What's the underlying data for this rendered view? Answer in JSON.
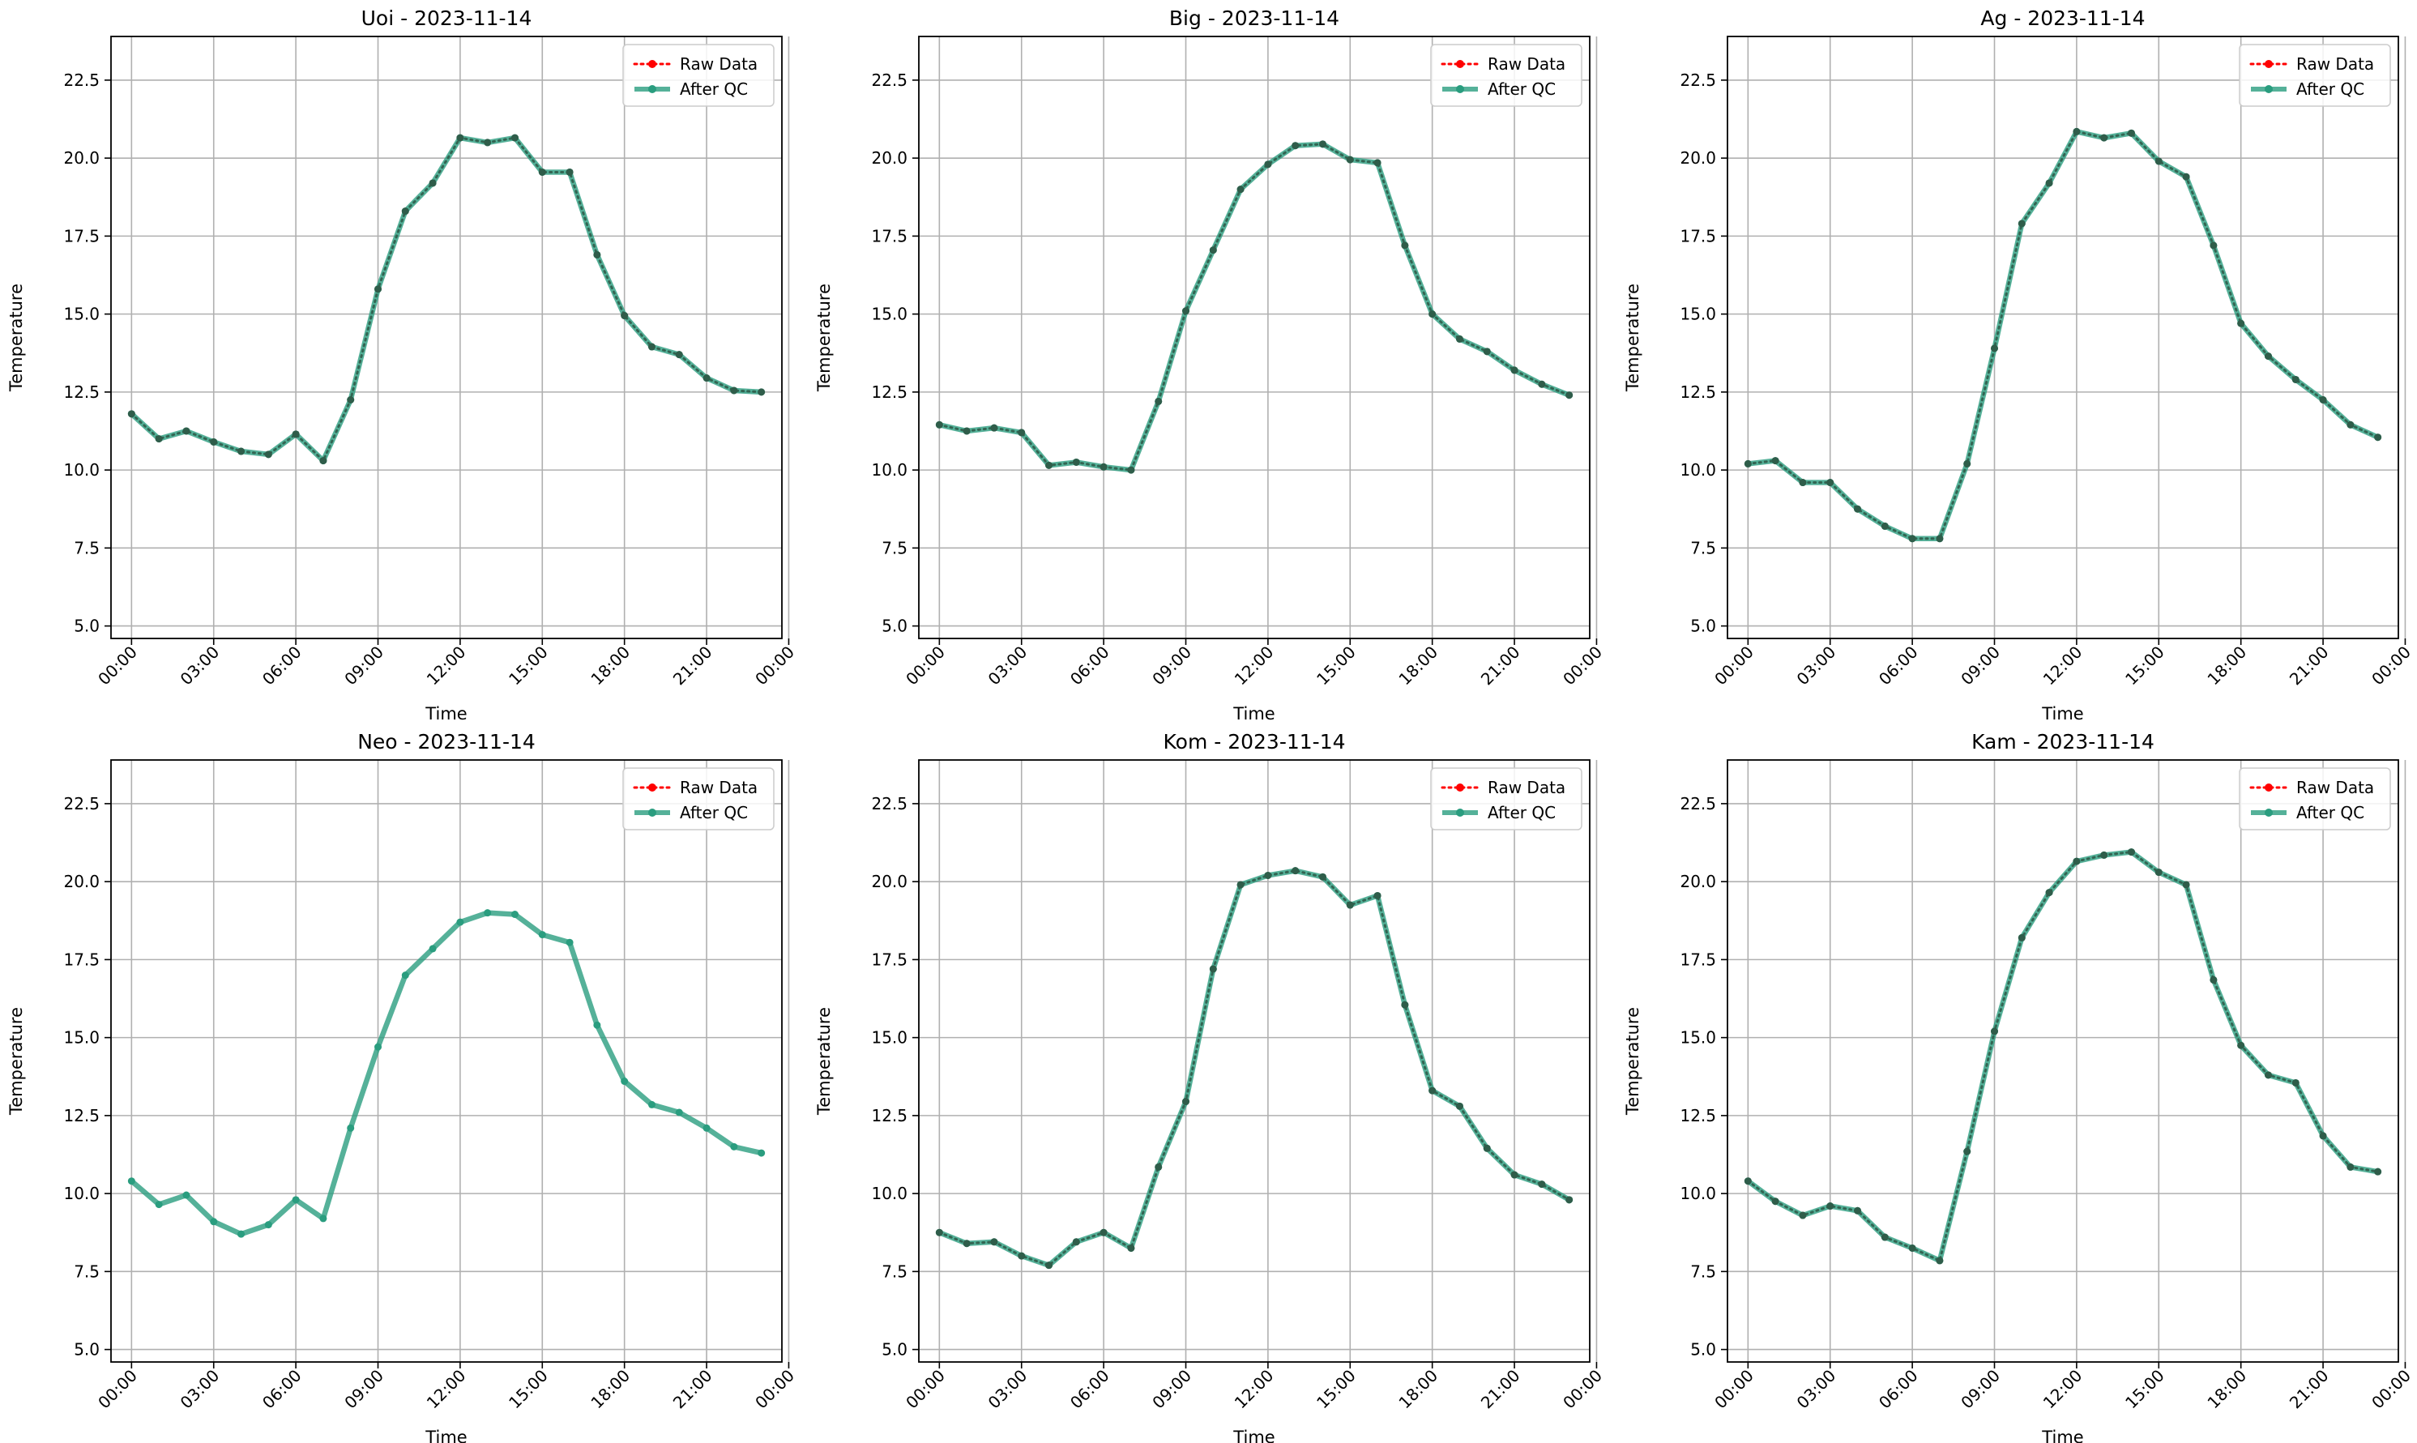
{
  "chart_data": [
    {
      "type": "line",
      "title": "Uoi - 2023-11-14",
      "xlabel": "Time",
      "ylabel": "Temperature",
      "ylim": [
        4.6,
        23.9
      ],
      "xlim": [
        -0.75,
        23.75
      ],
      "x_ticks": [
        "00:00",
        "03:00",
        "06:00",
        "09:00",
        "12:00",
        "15:00",
        "18:00",
        "21:00",
        "00:00"
      ],
      "y_ticks": [
        "5.0",
        "7.5",
        "10.0",
        "12.5",
        "15.0",
        "17.5",
        "20.0",
        "22.5"
      ],
      "grid": true,
      "legend": "top-right",
      "hours": [
        0,
        1,
        2,
        3,
        4,
        5,
        6,
        7,
        8,
        9,
        10,
        11,
        12,
        13,
        14,
        15,
        16,
        17,
        18,
        19,
        20,
        21,
        22,
        23
      ],
      "series": [
        {
          "name": "Raw Data",
          "values": [
            11.8,
            11.0,
            11.25,
            10.9,
            10.6,
            10.5,
            11.15,
            10.3,
            12.25,
            15.8,
            18.3,
            19.2,
            20.65,
            20.5,
            20.65,
            19.55,
            19.55,
            16.9,
            14.95,
            13.95,
            13.7,
            12.95,
            12.55,
            12.5
          ]
        },
        {
          "name": "After QC",
          "values": [
            11.8,
            11.0,
            11.25,
            10.9,
            10.6,
            10.5,
            11.15,
            10.3,
            12.25,
            15.8,
            18.3,
            19.2,
            20.65,
            20.5,
            20.65,
            19.55,
            19.55,
            16.9,
            14.95,
            13.95,
            13.7,
            12.95,
            12.55,
            12.5
          ]
        }
      ]
    },
    {
      "type": "line",
      "title": "Big - 2023-11-14",
      "xlabel": "Time",
      "ylabel": "Temperature",
      "ylim": [
        4.6,
        23.9
      ],
      "xlim": [
        -0.75,
        23.75
      ],
      "x_ticks": [
        "00:00",
        "03:00",
        "06:00",
        "09:00",
        "12:00",
        "15:00",
        "18:00",
        "21:00",
        "00:00"
      ],
      "y_ticks": [
        "5.0",
        "7.5",
        "10.0",
        "12.5",
        "15.0",
        "17.5",
        "20.0",
        "22.5"
      ],
      "grid": true,
      "legend": "top-right",
      "hours": [
        0,
        1,
        2,
        3,
        4,
        5,
        6,
        7,
        8,
        9,
        10,
        11,
        12,
        13,
        14,
        15,
        16,
        17,
        18,
        19,
        20,
        21,
        22,
        23
      ],
      "series": [
        {
          "name": "Raw Data",
          "values": [
            11.45,
            11.25,
            11.35,
            11.2,
            10.15,
            10.25,
            10.1,
            10.0,
            12.2,
            15.1,
            17.05,
            19.0,
            19.8,
            20.4,
            20.45,
            19.95,
            19.85,
            17.2,
            15.0,
            14.2,
            13.8,
            13.2,
            12.75,
            12.4
          ]
        },
        {
          "name": "After QC",
          "values": [
            11.45,
            11.25,
            11.35,
            11.2,
            10.15,
            10.25,
            10.1,
            10.0,
            12.2,
            15.1,
            17.05,
            19.0,
            19.8,
            20.4,
            20.45,
            19.95,
            19.85,
            17.2,
            15.0,
            14.2,
            13.8,
            13.2,
            12.75,
            12.4
          ]
        }
      ]
    },
    {
      "type": "line",
      "title": "Ag - 2023-11-14",
      "xlabel": "Time",
      "ylabel": "Temperature",
      "ylim": [
        4.6,
        23.9
      ],
      "xlim": [
        -0.75,
        23.75
      ],
      "x_ticks": [
        "00:00",
        "03:00",
        "06:00",
        "09:00",
        "12:00",
        "15:00",
        "18:00",
        "21:00",
        "00:00"
      ],
      "y_ticks": [
        "5.0",
        "7.5",
        "10.0",
        "12.5",
        "15.0",
        "17.5",
        "20.0",
        "22.5"
      ],
      "grid": true,
      "legend": "top-right",
      "hours": [
        0,
        1,
        2,
        3,
        4,
        5,
        6,
        7,
        8,
        9,
        10,
        11,
        12,
        13,
        14,
        15,
        16,
        17,
        18,
        19,
        20,
        21,
        22,
        23
      ],
      "series": [
        {
          "name": "Raw Data",
          "values": [
            10.2,
            10.3,
            9.6,
            9.6,
            8.75,
            8.2,
            7.8,
            7.8,
            10.2,
            13.9,
            17.9,
            19.2,
            20.85,
            20.65,
            20.8,
            19.9,
            19.4,
            17.2,
            14.7,
            13.65,
            12.9,
            12.25,
            11.45,
            11.05
          ]
        },
        {
          "name": "After QC",
          "values": [
            10.2,
            10.3,
            9.6,
            9.6,
            8.75,
            8.2,
            7.8,
            7.8,
            10.2,
            13.9,
            17.9,
            19.2,
            20.85,
            20.65,
            20.8,
            19.9,
            19.4,
            17.2,
            14.7,
            13.65,
            12.9,
            12.25,
            11.45,
            11.05
          ]
        }
      ]
    },
    {
      "type": "line",
      "title": "Neo - 2023-11-14",
      "xlabel": "Time",
      "ylabel": "Temperature",
      "ylim": [
        4.6,
        23.9
      ],
      "xlim": [
        -0.75,
        23.75
      ],
      "x_ticks": [
        "00:00",
        "03:00",
        "06:00",
        "09:00",
        "12:00",
        "15:00",
        "18:00",
        "21:00",
        "00:00"
      ],
      "y_ticks": [
        "5.0",
        "7.5",
        "10.0",
        "12.5",
        "15.0",
        "17.5",
        "20.0",
        "22.5"
      ],
      "grid": true,
      "legend": "top-right",
      "hours": [
        0,
        1,
        2,
        3,
        4,
        5,
        6,
        7,
        8,
        9,
        10,
        11,
        12,
        13,
        14,
        15,
        16,
        17,
        18,
        19,
        20,
        21,
        22,
        23
      ],
      "series": [
        {
          "name": "Raw Data",
          "values": []
        },
        {
          "name": "After QC",
          "values": [
            10.4,
            9.65,
            9.95,
            9.1,
            8.7,
            9.0,
            9.8,
            9.2,
            12.1,
            14.7,
            17.0,
            17.85,
            18.7,
            19.0,
            18.95,
            18.3,
            18.05,
            15.4,
            13.6,
            12.85,
            12.6,
            12.1,
            11.5,
            11.3
          ]
        }
      ]
    },
    {
      "type": "line",
      "title": "Kom - 2023-11-14",
      "xlabel": "Time",
      "ylabel": "Temperature",
      "ylim": [
        4.6,
        23.9
      ],
      "xlim": [
        -0.75,
        23.75
      ],
      "x_ticks": [
        "00:00",
        "03:00",
        "06:00",
        "09:00",
        "12:00",
        "15:00",
        "18:00",
        "21:00",
        "00:00"
      ],
      "y_ticks": [
        "5.0",
        "7.5",
        "10.0",
        "12.5",
        "15.0",
        "17.5",
        "20.0",
        "22.5"
      ],
      "grid": true,
      "legend": "top-right",
      "hours": [
        0,
        1,
        2,
        3,
        4,
        5,
        6,
        7,
        8,
        9,
        10,
        11,
        12,
        13,
        14,
        15,
        16,
        17,
        18,
        19,
        20,
        21,
        22,
        23
      ],
      "series": [
        {
          "name": "Raw Data",
          "values": [
            8.75,
            8.4,
            8.45,
            8.0,
            7.7,
            8.45,
            8.75,
            8.25,
            10.85,
            12.95,
            17.2,
            19.9,
            20.2,
            20.35,
            20.15,
            19.25,
            19.55,
            16.05,
            13.3,
            12.8,
            11.45,
            10.6,
            10.3,
            9.8
          ]
        },
        {
          "name": "After QC",
          "values": [
            8.75,
            8.4,
            8.45,
            8.0,
            7.7,
            8.45,
            8.75,
            8.25,
            10.85,
            12.95,
            17.2,
            19.9,
            20.2,
            20.35,
            20.15,
            19.25,
            19.55,
            16.05,
            13.3,
            12.8,
            11.45,
            10.6,
            10.3,
            9.8
          ]
        }
      ]
    },
    {
      "type": "line",
      "title": "Kam - 2023-11-14",
      "xlabel": "Time",
      "ylabel": "Temperature",
      "ylim": [
        4.6,
        23.9
      ],
      "xlim": [
        -0.75,
        23.75
      ],
      "x_ticks": [
        "00:00",
        "03:00",
        "06:00",
        "09:00",
        "12:00",
        "15:00",
        "18:00",
        "21:00",
        "00:00"
      ],
      "y_ticks": [
        "5.0",
        "7.5",
        "10.0",
        "12.5",
        "15.0",
        "17.5",
        "20.0",
        "22.5"
      ],
      "grid": true,
      "legend": "top-right",
      "hours": [
        0,
        1,
        2,
        3,
        4,
        5,
        6,
        7,
        8,
        9,
        10,
        11,
        12,
        13,
        14,
        15,
        16,
        17,
        18,
        19,
        20,
        21,
        22,
        23
      ],
      "series": [
        {
          "name": "Raw Data",
          "values": [
            10.4,
            9.75,
            9.3,
            9.6,
            9.45,
            8.6,
            8.25,
            7.85,
            11.35,
            15.2,
            18.2,
            19.65,
            20.65,
            20.85,
            20.95,
            20.3,
            19.9,
            16.85,
            14.75,
            13.8,
            13.55,
            11.85,
            10.85,
            10.7
          ]
        },
        {
          "name": "After QC",
          "values": [
            10.4,
            9.75,
            9.3,
            9.6,
            9.45,
            8.6,
            8.25,
            7.85,
            11.35,
            15.2,
            18.2,
            19.65,
            20.65,
            20.85,
            20.95,
            20.3,
            19.9,
            16.85,
            14.75,
            13.8,
            13.55,
            11.85,
            10.85,
            10.7
          ]
        }
      ]
    }
  ],
  "colors": {
    "raw": "#ff0000",
    "qc": "#2a9d7f",
    "marker_dark": "#2f5d4a",
    "grid": "#b0b0b0",
    "axis": "#000000"
  }
}
